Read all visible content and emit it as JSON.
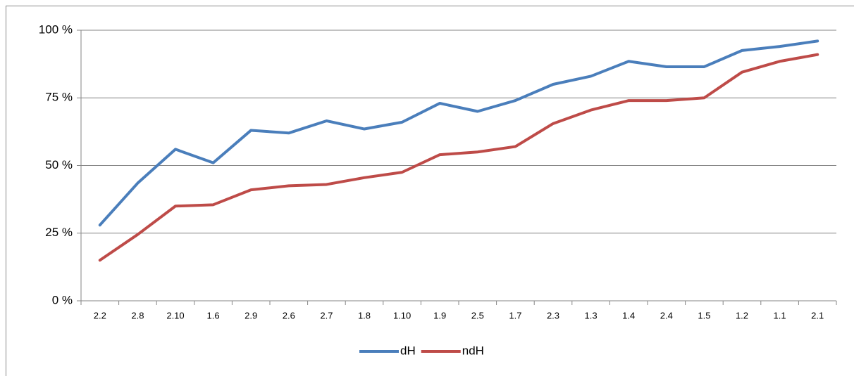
{
  "chart_data": {
    "type": "line",
    "categories": [
      "2.2",
      "2.8",
      "2.10",
      "1.6",
      "2.9",
      "2.6",
      "2.7",
      "1.8",
      "1.10",
      "1.9",
      "2.5",
      "1.7",
      "2.3",
      "1.3",
      "1.4",
      "2.4",
      "1.5",
      "1.2",
      "1.1",
      "2.1"
    ],
    "series": [
      {
        "name": "dH",
        "color": "#4a7ebb",
        "values": [
          28,
          43.5,
          56,
          51,
          63,
          62,
          66.5,
          63.5,
          66,
          73,
          70,
          74,
          80,
          83,
          88.5,
          86.5,
          86.5,
          92.5,
          94,
          96
        ]
      },
      {
        "name": "ndH",
        "color": "#be4b48",
        "values": [
          15,
          24.5,
          35,
          35.5,
          41,
          42.5,
          43,
          45.5,
          47.5,
          54,
          55,
          57,
          65.5,
          70.5,
          74,
          74,
          75,
          84.5,
          88.5,
          91
        ]
      }
    ],
    "ylim": [
      0,
      100
    ],
    "yticks": [
      {
        "value": 0,
        "label": "0 %"
      },
      {
        "value": 25,
        "label": "25 %"
      },
      {
        "value": 50,
        "label": "50 %"
      },
      {
        "value": 75,
        "label": "75 %"
      },
      {
        "value": 100,
        "label": "100 %"
      }
    ],
    "grid": true,
    "legend": "bottom"
  }
}
